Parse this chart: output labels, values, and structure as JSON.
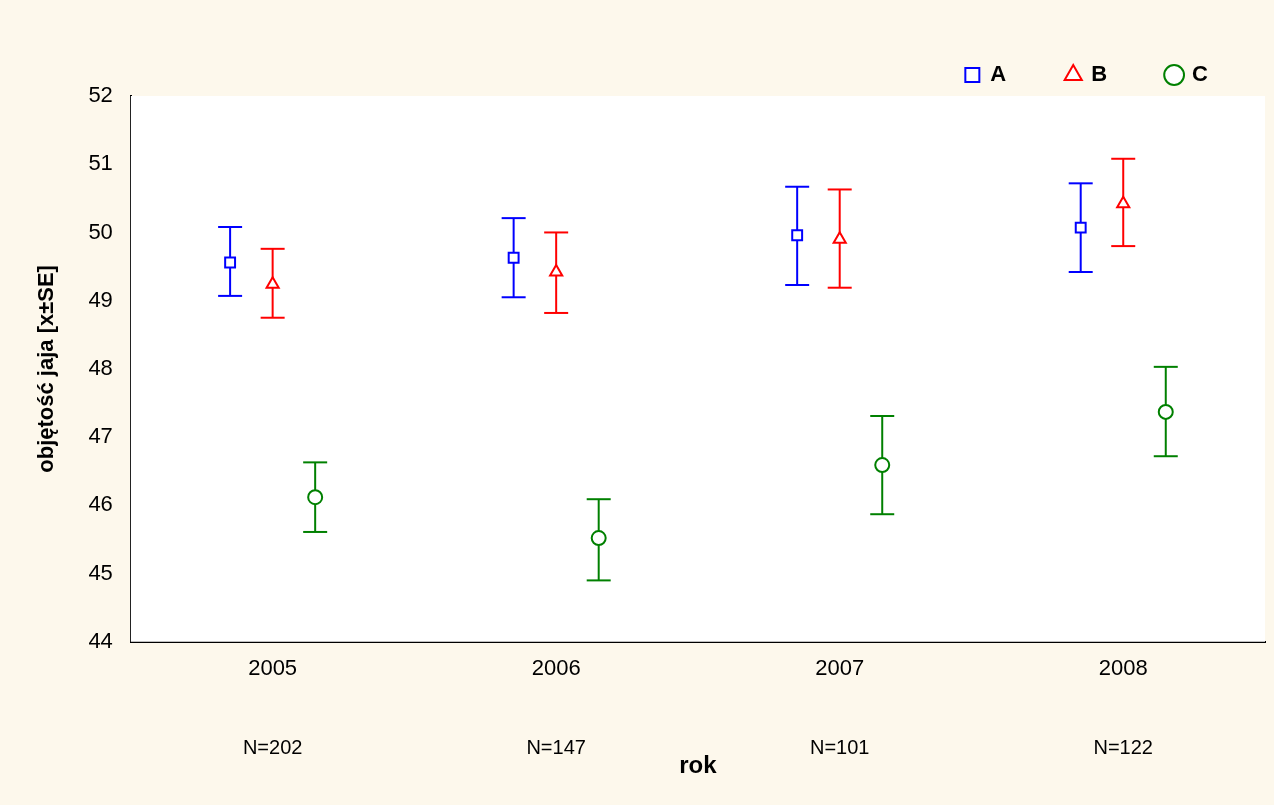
{
  "chart_data": {
    "type": "scatter",
    "xlabel": "rok",
    "ylabel": "objętość jaja [x±SE]",
    "categories": [
      "2005",
      "2006",
      "2007",
      "2008"
    ],
    "ylim": [
      44,
      52
    ],
    "yticks": [
      44,
      45,
      46,
      47,
      48,
      49,
      50,
      51,
      52
    ],
    "grid": false,
    "legend": "top right",
    "series": [
      {
        "name": "A",
        "color": "#0000ff",
        "marker": "square",
        "values": [
          49.56,
          49.63,
          49.96,
          50.07
        ],
        "errors": [
          [
            49.07,
            50.08
          ],
          [
            49.05,
            50.21
          ],
          [
            49.23,
            50.67
          ],
          [
            49.42,
            50.72
          ]
        ]
      },
      {
        "name": "B",
        "color": "#ff0000",
        "marker": "triangle",
        "values": [
          49.24,
          49.42,
          49.9,
          50.42
        ],
        "errors": [
          [
            48.75,
            49.76
          ],
          [
            48.82,
            50.0
          ],
          [
            49.19,
            50.63
          ],
          [
            49.8,
            51.08
          ]
        ]
      },
      {
        "name": "C",
        "color": "#008000",
        "marker": "circle",
        "values": [
          46.12,
          45.52,
          46.59,
          47.37
        ],
        "errors": [
          [
            45.61,
            46.63
          ],
          [
            44.9,
            46.09
          ],
          [
            45.87,
            47.31
          ],
          [
            46.72,
            48.03
          ]
        ]
      }
    ],
    "annotations": [
      "N=202",
      "N=147",
      "N=101",
      "N=122"
    ]
  }
}
